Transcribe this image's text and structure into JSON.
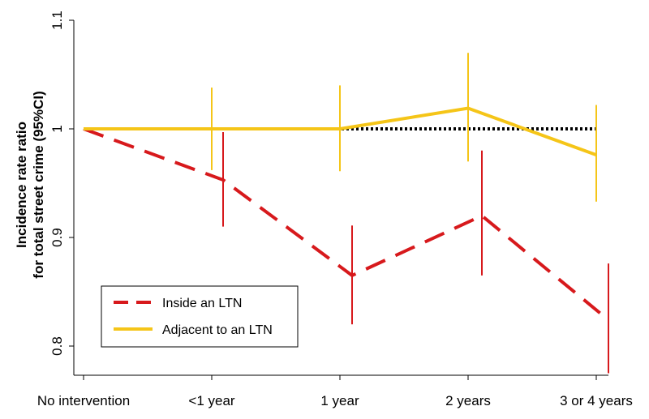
{
  "chart_data": {
    "type": "line",
    "title": "",
    "xlabel": "",
    "ylabel": [
      "Incidence rate ratio",
      "for total street crime (95%CI)"
    ],
    "categories": [
      "No intervention",
      "<1 year",
      "1 year",
      "2 years",
      "3 or 4 years"
    ],
    "ylim": [
      0.77,
      1.1
    ],
    "yticks": [
      0.8,
      0.9,
      1,
      1.1
    ],
    "ytick_labels": [
      "0.8",
      "0.9",
      "1",
      "1.1"
    ],
    "reference_line": {
      "value": 1,
      "style": "dotted",
      "color": "#000000"
    },
    "grid": false,
    "legend_position": "bottom-left",
    "series": [
      {
        "name": "Inside an LTN",
        "color": "#d7191c",
        "line_style": "dashed",
        "values": [
          1.0,
          0.953,
          0.865,
          0.92,
          0.824
        ],
        "ci_low": [
          null,
          0.91,
          0.82,
          0.865,
          0.775
        ],
        "ci_high": [
          null,
          0.997,
          0.911,
          0.98,
          0.876
        ]
      },
      {
        "name": "Adjacent to an LTN",
        "color": "#f5c518",
        "line_style": "solid",
        "values": [
          1.0,
          1.0,
          1.0,
          1.019,
          0.976
        ],
        "ci_low": [
          null,
          0.962,
          0.961,
          0.97,
          0.933
        ],
        "ci_high": [
          null,
          1.038,
          1.04,
          1.07,
          1.022
        ]
      }
    ]
  }
}
